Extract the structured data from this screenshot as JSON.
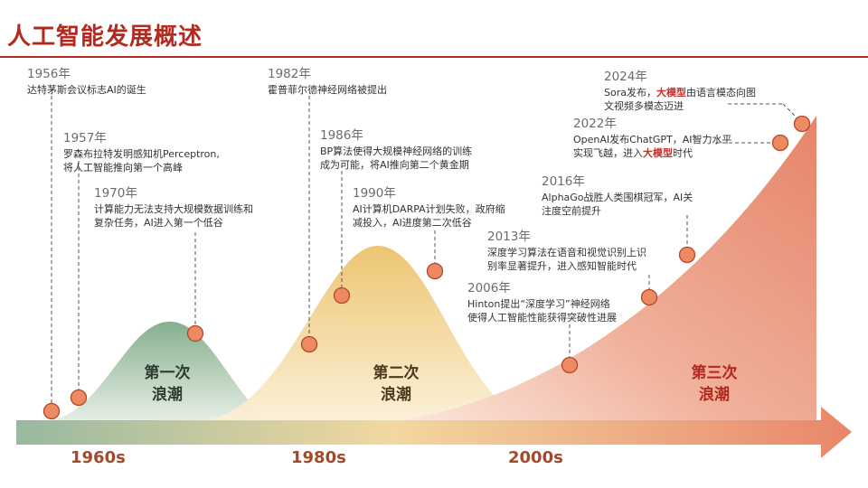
{
  "title": "人工智能发展概述",
  "colors": {
    "accent": "#b22a20",
    "node_fill": "#ee8a62",
    "node_stroke": "#b5482a",
    "wave1": "#8fb697",
    "wave2": "#eecb7c",
    "wave3": "#ea9c84",
    "highlight": "#c8322a"
  },
  "waves": [
    {
      "line1": "第一次",
      "line2": "浪潮"
    },
    {
      "line1": "第二次",
      "line2": "浪潮"
    },
    {
      "line1": "第三次",
      "line2": "浪潮"
    }
  ],
  "decades": [
    "1960s",
    "1980s",
    "2000s"
  ],
  "events": [
    {
      "year": "1956年",
      "text": "达特茅斯会议标志AI的诞生"
    },
    {
      "year": "1957年",
      "text": "罗森布拉特发明感知机Perceptron,",
      "text2": "将人工智能推向第一个高峰"
    },
    {
      "year": "1970年",
      "text": "计算能力无法支持大规模数据训练和",
      "text2": "复杂任务，AI进入第一个低谷"
    },
    {
      "year": "1982年",
      "text": "霍普菲尔德神经网络被提出"
    },
    {
      "year": "1986年",
      "text": "BP算法使得大规模神经网络的训练",
      "text2": "成为可能，将AI推向第二个黄金期"
    },
    {
      "year": "1990年",
      "text": "AI计算机DARPA计划失败，政府缩",
      "text2": "减投入，AI进度第二次低谷"
    },
    {
      "year": "2006年",
      "text": "Hinton提出“深度学习”神经网络",
      "text2": "使得人工智能性能获得突破性进展"
    },
    {
      "year": "2013年",
      "text": "深度学习算法在语音和视觉识别上识",
      "text2": "别率显著提升，进入感知智能时代"
    },
    {
      "year": "2016年",
      "text": "AlphaGo战胜人类围棋冠军，AI关",
      "text2": "注度空前提升"
    },
    {
      "year": "2022年",
      "text": "OpenAI发布ChatGPT，AI智力水平",
      "text2a": "实现飞越，进入",
      "text2b": "大模型",
      "text2c": "时代"
    },
    {
      "year": "2024年",
      "text1a": "Sora发布，",
      "text1b": "大模型",
      "text1c": "由语言模态向图",
      "text2": "文视频多模态迈进"
    }
  ]
}
